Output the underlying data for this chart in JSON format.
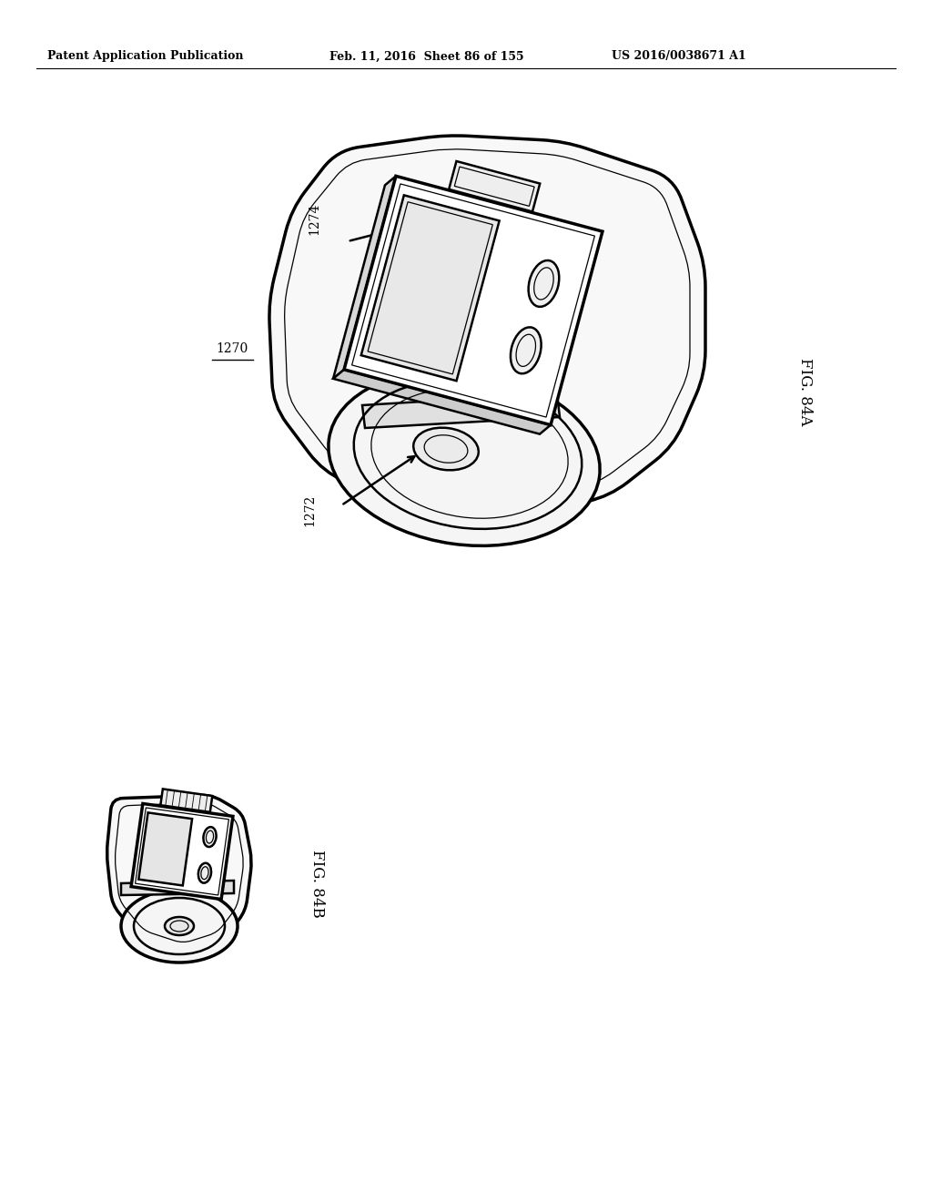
{
  "background_color": "#ffffff",
  "header_left": "Patent Application Publication",
  "header_mid": "Feb. 11, 2016  Sheet 86 of 155",
  "header_right": "US 2016/0038671 A1",
  "header_fontsize": 9,
  "fig84a_label": "FIG. 84A",
  "fig84b_label": "FIG. 84B",
  "label_1270": "1270",
  "label_1272": "1272",
  "label_1274": "1274",
  "line_color": "#000000",
  "lw": 1.8,
  "lw2": 2.5,
  "lw_thin": 0.9
}
